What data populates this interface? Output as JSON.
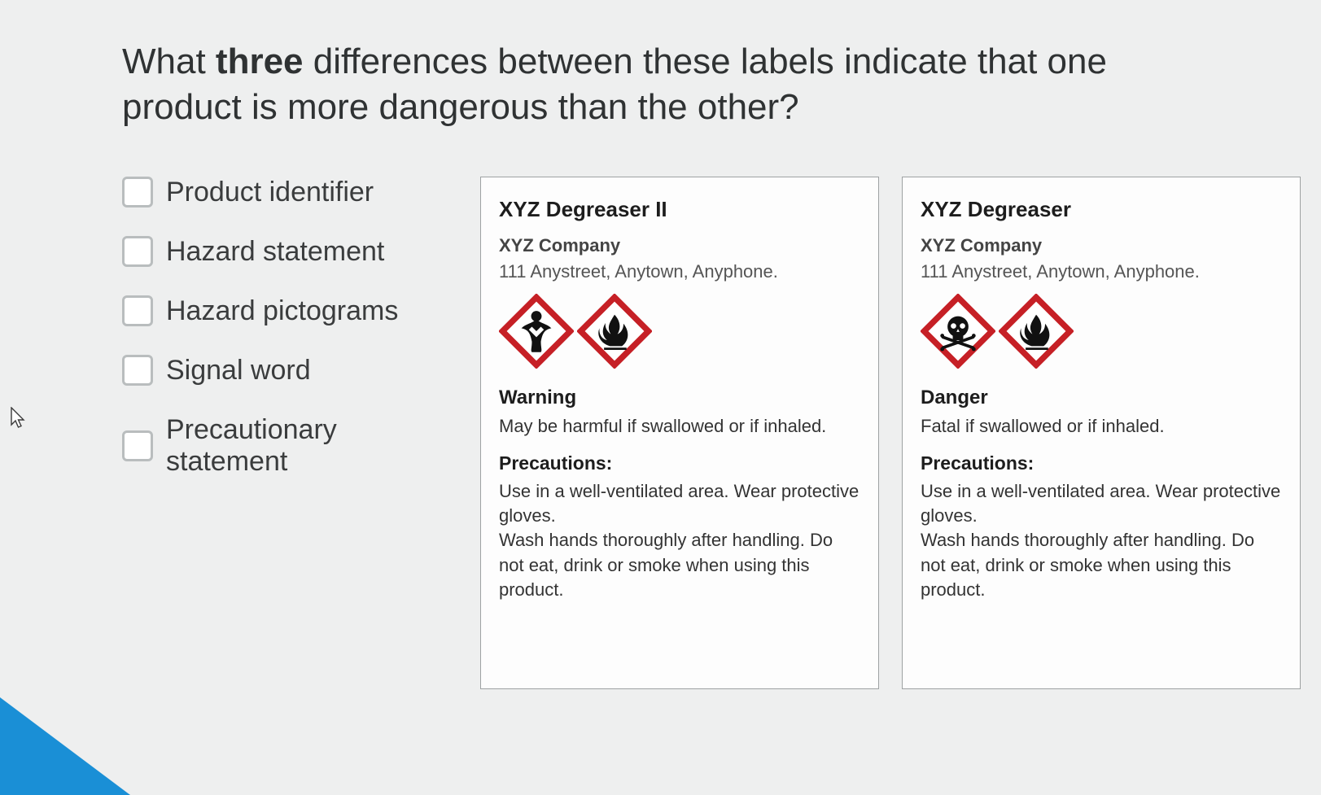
{
  "question_html": "What <b>three</b> differences between these labels indicate that one product is more dangerous than the other?",
  "options": [
    {
      "id": "product-identifier",
      "label": "Product identifier"
    },
    {
      "id": "hazard-statement",
      "label": "Hazard statement"
    },
    {
      "id": "hazard-pictograms",
      "label": "Hazard pictograms"
    },
    {
      "id": "signal-word",
      "label": "Signal word"
    },
    {
      "id": "precautionary-stmt",
      "label": "Precautionary statement"
    }
  ],
  "picto_border": "#c62026",
  "picto_bg": "#ffffff",
  "picto_fill": "#111111",
  "labels": [
    {
      "product": "XYZ Degreaser II",
      "company": "XYZ Company",
      "address": "111 Anystreet, Anytown, Anyphone.",
      "pictograms": [
        "health-hazard",
        "flame"
      ],
      "signal": "Warning",
      "hazard": "May be harmful if swallowed or if inhaled.",
      "precautions_title": "Precautions:",
      "precautions": "Use in a well-ventilated area. Wear protective gloves.\nWash hands thoroughly after handling. Do not eat, drink or smoke when using this product."
    },
    {
      "product": "XYZ Degreaser",
      "company": "XYZ Company",
      "address": "111 Anystreet, Anytown, Anyphone.",
      "pictograms": [
        "skull",
        "flame"
      ],
      "signal": "Danger",
      "hazard": "Fatal if swallowed or if inhaled.",
      "precautions_title": "Precautions:",
      "precautions": "Use in a well-ventilated area. Wear protective gloves.\nWash hands thoroughly after handling. Do not eat, drink or smoke when using this product."
    }
  ],
  "colors": {
    "background": "#eeefef",
    "text": "#2a2a2a",
    "card_border": "#9ea2a3",
    "checkbox_border": "#b9bdbe",
    "accent_triangle": "#1a8fd6"
  }
}
